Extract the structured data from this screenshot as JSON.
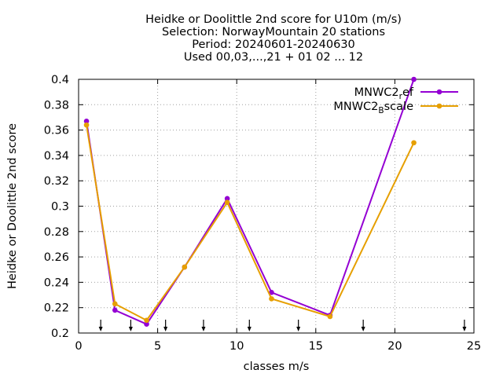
{
  "chart_data": {
    "type": "line",
    "title_lines": [
      "Heidke or Doolittle 2nd score  for U10m (m/s)",
      "Selection: NorwayMountain     20 stations",
      "Period: 20240601-20240630",
      "Used 00,03,...,21 + 01 02 ... 12"
    ],
    "xlabel": "classes m/s",
    "ylabel": "Heidke or Doolittle 2nd score",
    "xlim": [
      0,
      25
    ],
    "ylim": [
      0.2,
      0.4
    ],
    "xticks": [
      0,
      5,
      10,
      15,
      20,
      25
    ],
    "yticks": [
      0.2,
      0.22,
      0.24,
      0.26,
      0.28,
      0.3,
      0.32,
      0.34,
      0.36,
      0.38,
      0.4
    ],
    "grid": true,
    "legend_position": "top-right",
    "series": [
      {
        "name": "MNWC2_ref",
        "label_main": "MNWC2",
        "label_sub": "r",
        "label_rest": "ef",
        "color": "#9400d3",
        "x": [
          0.5,
          2.3,
          4.3,
          6.7,
          9.4,
          12.2,
          15.9,
          21.2
        ],
        "y": [
          0.367,
          0.218,
          0.207,
          0.252,
          0.306,
          0.232,
          0.214,
          0.4
        ]
      },
      {
        "name": "MNWC2_Bscale",
        "label_main": "MNWC2",
        "label_sub": "B",
        "label_rest": "scale",
        "color": "#e69f00",
        "x": [
          0.5,
          2.3,
          4.3,
          6.7,
          9.4,
          12.2,
          15.9,
          21.2
        ],
        "y": [
          0.364,
          0.223,
          0.21,
          0.252,
          0.303,
          0.227,
          0.213,
          0.35
        ]
      }
    ],
    "arrow_markers_x": [
      1.4,
      3.3,
      5.5,
      7.9,
      10.8,
      13.9,
      18.0,
      24.4
    ]
  }
}
